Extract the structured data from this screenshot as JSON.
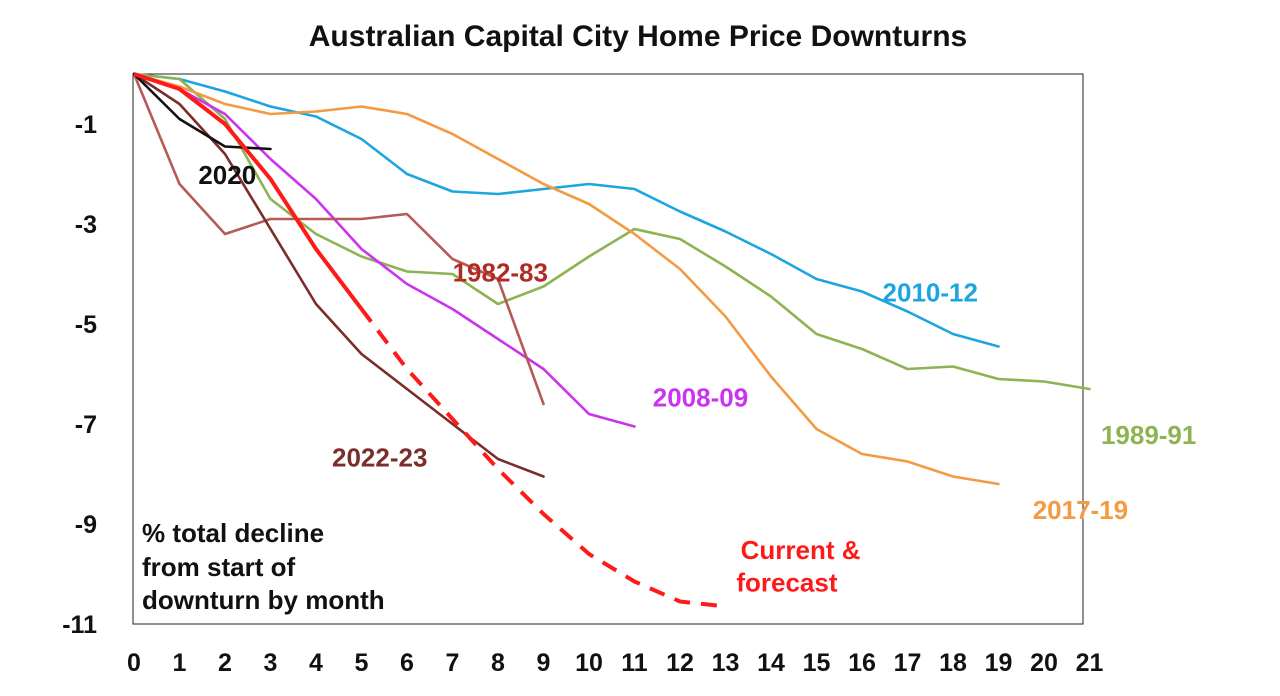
{
  "chart_data": {
    "type": "line",
    "title": "Australian Capital City Home Price Downturns",
    "note_lines": [
      "% total decline",
      "from start of",
      "downturn by month"
    ],
    "xlim": [
      0,
      21
    ],
    "ylim": [
      -11,
      0
    ],
    "x_ticks": [
      "0",
      "1",
      "2",
      "3",
      "4",
      "5",
      "6",
      "7",
      "8",
      "9",
      "10",
      "11",
      "12",
      "13",
      "14",
      "15",
      "16",
      "17",
      "18",
      "19",
      "20",
      "21"
    ],
    "y_ticks": [
      {
        "value": -1,
        "label": "-1"
      },
      {
        "value": -3,
        "label": "-3"
      },
      {
        "value": -5,
        "label": "-5"
      },
      {
        "value": -7,
        "label": "-7"
      },
      {
        "value": -9,
        "label": "-9"
      },
      {
        "value": -11,
        "label": "-11"
      }
    ],
    "grid": false,
    "series": [
      {
        "name": "2010-12",
        "color": "#1ea5e0",
        "dashed": false,
        "x": [
          0,
          1,
          2,
          3,
          4,
          5,
          6,
          7,
          8,
          9,
          10,
          11,
          12,
          13,
          14,
          15,
          16,
          17,
          18,
          19
        ],
        "y": [
          0,
          -0.1,
          -0.35,
          -0.65,
          -0.85,
          -1.3,
          -2.0,
          -2.35,
          -2.4,
          -2.3,
          -2.2,
          -2.3,
          -2.75,
          -3.15,
          -3.6,
          -4.1,
          -4.35,
          -4.75,
          -5.2,
          -5.45
        ]
      },
      {
        "name": "1989-91",
        "color": "#8db352",
        "dashed": false,
        "x": [
          0,
          1,
          2,
          3,
          4,
          5,
          6,
          7,
          8,
          9,
          10,
          11,
          12,
          13,
          14,
          15,
          16,
          17,
          18,
          19,
          20,
          21
        ],
        "y": [
          0,
          -0.1,
          -0.9,
          -2.5,
          -3.2,
          -3.65,
          -3.95,
          -4.0,
          -4.6,
          -4.25,
          -3.65,
          -3.1,
          -3.3,
          -3.85,
          -4.45,
          -5.2,
          -5.5,
          -5.9,
          -5.85,
          -6.1,
          -6.15,
          -6.3
        ]
      },
      {
        "name": "2017-19",
        "color": "#f39a43",
        "dashed": false,
        "x": [
          0,
          1,
          2,
          3,
          4,
          5,
          6,
          7,
          8,
          9,
          10,
          11,
          12,
          13,
          14,
          15,
          16,
          17,
          18,
          19
        ],
        "y": [
          0,
          -0.25,
          -0.6,
          -0.8,
          -0.75,
          -0.65,
          -0.8,
          -1.2,
          -1.7,
          -2.2,
          -2.6,
          -3.2,
          -3.9,
          -4.85,
          -6.05,
          -7.1,
          -7.6,
          -7.75,
          -8.05,
          -8.2
        ]
      },
      {
        "name": "2008-09",
        "color": "#cc33ee",
        "dashed": false,
        "x": [
          0,
          1,
          2,
          3,
          4,
          5,
          6,
          7,
          8,
          9,
          10,
          11
        ],
        "y": [
          0,
          -0.3,
          -0.8,
          -1.7,
          -2.5,
          -3.5,
          -4.2,
          -4.7,
          -5.3,
          -5.9,
          -6.8,
          -7.05
        ]
      },
      {
        "name": "1982-83",
        "color": "#b55a56",
        "dashed": false,
        "x": [
          0,
          1,
          2,
          3,
          4,
          5,
          6,
          7,
          8,
          9
        ],
        "y": [
          0,
          -2.2,
          -3.2,
          -2.9,
          -2.9,
          -2.9,
          -2.8,
          -3.7,
          -4.1,
          -6.6
        ]
      },
      {
        "name": "2022-23",
        "color": "#7b2d2a",
        "dashed": false,
        "x": [
          0,
          1,
          2,
          3,
          4,
          5,
          6,
          7,
          8,
          9
        ],
        "y": [
          0,
          -0.6,
          -1.6,
          -3.1,
          -4.6,
          -5.6,
          -6.3,
          -7.0,
          -7.7,
          -8.05
        ]
      },
      {
        "name": "2020",
        "color": "#111111",
        "dashed": false,
        "x": [
          0,
          1,
          2,
          3
        ],
        "y": [
          0,
          -0.9,
          -1.45,
          -1.5
        ]
      },
      {
        "name": "Current & forecast",
        "color": "#ff1a1a",
        "dashed": false,
        "x": [
          0,
          1,
          2,
          3,
          4,
          5
        ],
        "y": [
          0,
          -0.3,
          -1.0,
          -2.1,
          -3.5,
          -4.7
        ]
      },
      {
        "name": "Current & forecast",
        "color": "#ff1a1a",
        "dashed": true,
        "x": [
          5,
          6,
          7,
          8,
          9,
          10,
          11,
          12,
          13
        ],
        "y": [
          -4.7,
          -5.9,
          -6.9,
          -7.9,
          -8.8,
          -9.6,
          -10.15,
          -10.55,
          -10.65
        ]
      }
    ],
    "annotations": [
      {
        "text": "2020",
        "color": "#111111",
        "x": 2.05,
        "y": -2.2
      },
      {
        "text": "1982-83",
        "color": "#b22a24",
        "x": 8.05,
        "y": -4.15
      },
      {
        "text": "2010-12",
        "color": "#1ea5e0",
        "x": 17.5,
        "y": -4.55
      },
      {
        "text": "2008-09",
        "color": "#cc33ee",
        "x": 12.45,
        "y": -6.65
      },
      {
        "text": "1989-91",
        "color": "#8db352",
        "x": 22.3,
        "y": -7.4
      },
      {
        "text": "2022-23",
        "color": "#7b2d2a",
        "x": 5.4,
        "y": -7.85
      },
      {
        "text": "2017-19",
        "color": "#f39a43",
        "x": 20.8,
        "y": -8.9
      },
      {
        "text": "Current &",
        "color": "#ff1a1a",
        "x": 14.65,
        "y": -9.7
      },
      {
        "text": "forecast",
        "color": "#ff1a1a",
        "x": 14.35,
        "y": -10.35
      }
    ]
  }
}
